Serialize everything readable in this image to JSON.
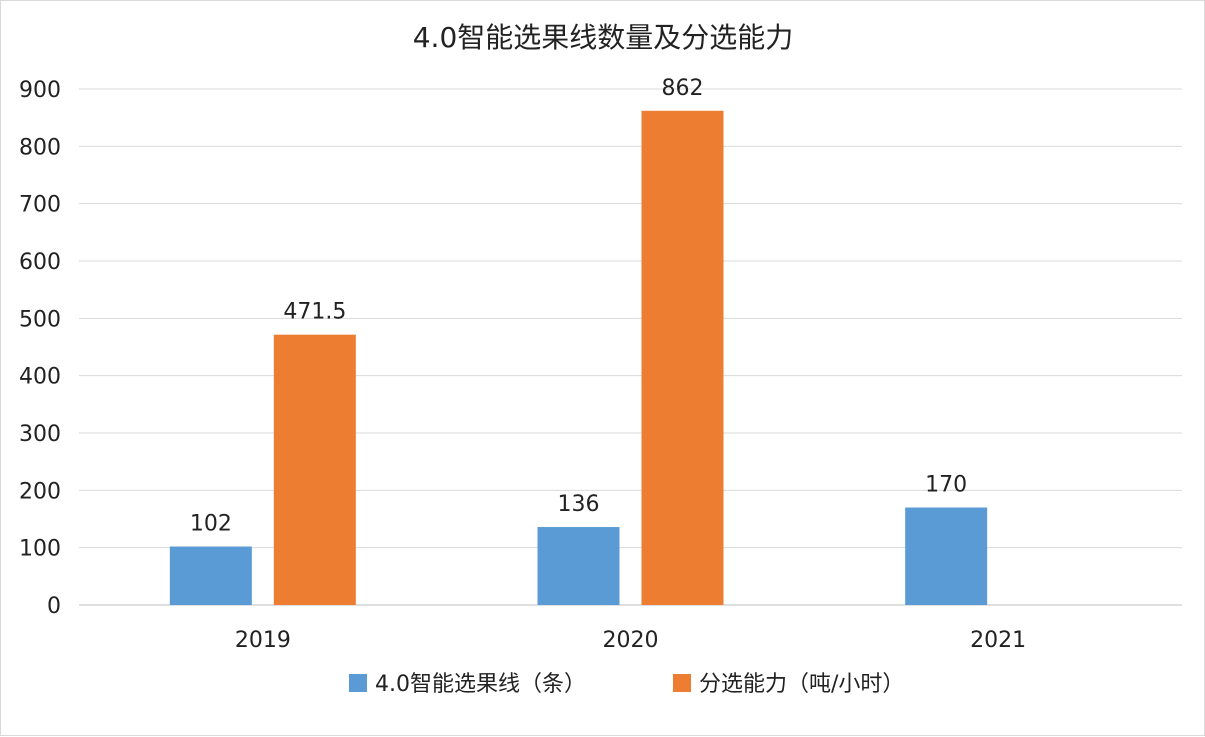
{
  "chart_data": {
    "type": "bar",
    "title": "4.0智能选果线数量及分选能力",
    "categories": [
      "2019",
      "2020",
      "2021"
    ],
    "series": [
      {
        "name": "4.0智能选果线（条）",
        "values": [
          102,
          136,
          170
        ],
        "color": "#5b9bd5"
      },
      {
        "name": "分选能力（吨/小时）",
        "values": [
          471.5,
          862,
          null
        ],
        "color": "#ed7d31"
      }
    ],
    "data_labels": [
      [
        "102",
        "136",
        "170"
      ],
      [
        "471.5",
        "862",
        ""
      ]
    ],
    "y_ticks": [
      "0",
      "100",
      "200",
      "300",
      "400",
      "500",
      "600",
      "700",
      "800",
      "900"
    ],
    "ylim": [
      0,
      900
    ],
    "xlabel": "",
    "ylabel": "",
    "grid": true,
    "legend_position": "bottom"
  }
}
